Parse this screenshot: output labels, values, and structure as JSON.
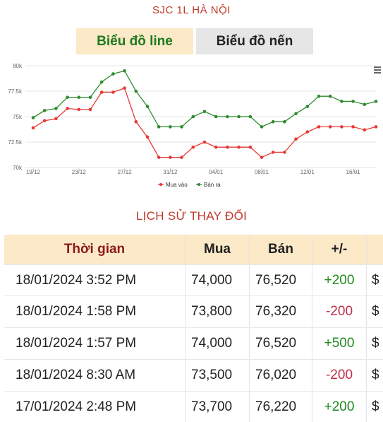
{
  "header": {
    "title": "SJC 1L HÀ NỘI"
  },
  "toggle": {
    "line_label": "Biểu đồ line",
    "candle_label": "Biểu đồ nến"
  },
  "chart_data": {
    "type": "line",
    "x": [
      "19/12",
      "20/12",
      "21/12",
      "22/12",
      "23/12",
      "24/12",
      "25/12",
      "26/12",
      "27/12",
      "28/12",
      "29/12",
      "30/12",
      "31/12",
      "01/01",
      "02/01",
      "03/01",
      "04/01",
      "05/01",
      "06/01",
      "07/01",
      "08/01",
      "09/01",
      "10/01",
      "11/01",
      "12/01",
      "13/01",
      "14/01",
      "15/01",
      "16/01",
      "17/01",
      "18/01"
    ],
    "x_ticks": [
      "19/12",
      "23/12",
      "27/12",
      "31/12",
      "04/01",
      "08/01",
      "12/01",
      "16/01"
    ],
    "y_ticks": [
      "70k",
      "72.5k",
      "75k",
      "77.5k",
      "80k"
    ],
    "ylim": [
      70000,
      80000
    ],
    "series": [
      {
        "name": "Mua vào",
        "color": "#e53935",
        "values": [
          73900,
          74600,
          74800,
          75800,
          75700,
          75700,
          77400,
          77400,
          77800,
          74500,
          73000,
          71000,
          71000,
          71000,
          72000,
          72500,
          72000,
          72000,
          72000,
          72000,
          71000,
          71500,
          71500,
          72800,
          73500,
          74000,
          74000,
          74000,
          74000,
          73700,
          74000
        ]
      },
      {
        "name": "Bán ra",
        "color": "#2e8b2e",
        "values": [
          74900,
          75600,
          75800,
          76900,
          76900,
          76900,
          78400,
          79200,
          79500,
          77500,
          76000,
          74000,
          74000,
          74000,
          75000,
          75500,
          75000,
          75000,
          75000,
          75000,
          74000,
          74500,
          74500,
          75300,
          76000,
          77000,
          77000,
          76500,
          76500,
          76200,
          76500
        ]
      }
    ],
    "legend_position": "bottom"
  },
  "history": {
    "title": "LỊCH SỬ THAY ĐỔI",
    "columns": [
      "Thời gian",
      "Mua",
      "Bán",
      "+/-"
    ],
    "rows": [
      {
        "time": "18/01/2024 3:52 PM",
        "buy": "74,000",
        "sell": "76,520",
        "diff": "+200",
        "more": "$"
      },
      {
        "time": "18/01/2024 1:58 PM",
        "buy": "73,800",
        "sell": "76,320",
        "diff": "-200",
        "more": "$"
      },
      {
        "time": "18/01/2024 1:57 PM",
        "buy": "74,000",
        "sell": "76,520",
        "diff": "+500",
        "more": "$"
      },
      {
        "time": "18/01/2024 8:30 AM",
        "buy": "73,500",
        "sell": "76,020",
        "diff": "-200",
        "more": "$"
      },
      {
        "time": "17/01/2024 2:48 PM",
        "buy": "73,700",
        "sell": "76,220",
        "diff": "+200",
        "more": "$"
      }
    ]
  },
  "chart_menu_icon": "hamburger-menu-icon"
}
